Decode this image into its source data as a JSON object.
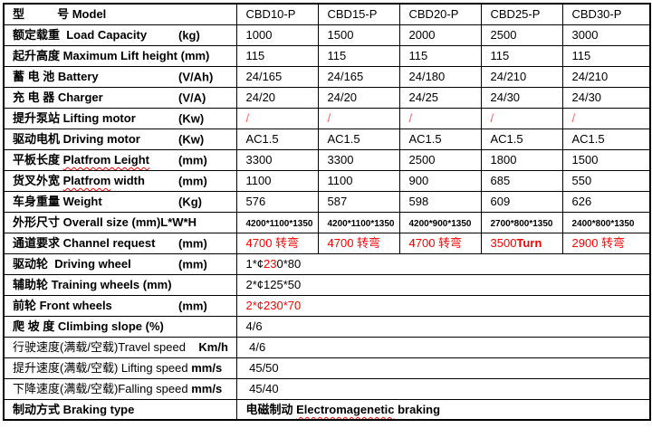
{
  "colors": {
    "red": "#ff0000",
    "soft_red": "#ff5f5f",
    "border": "#000000",
    "text": "#000000"
  },
  "table": {
    "rows": [
      {
        "id": "model",
        "label": [
          {
            "t": "型          号 Model",
            "b": 1
          }
        ],
        "unit": "",
        "cells": [
          [
            {
              "t": "CBD10-P"
            }
          ],
          [
            {
              "t": "CBD15-P"
            }
          ],
          [
            {
              "t": "CBD20-P"
            }
          ],
          [
            {
              "t": "CBD25-P"
            }
          ],
          [
            {
              "t": "CBD30-P"
            }
          ]
        ]
      },
      {
        "id": "load-capacity",
        "label": [
          {
            "t": "额定载重  Load Capacity",
            "b": 1
          }
        ],
        "unit": "(kg)",
        "cells": [
          [
            {
              "t": "1000"
            }
          ],
          [
            {
              "t": "1500"
            }
          ],
          [
            {
              "t": "2000"
            }
          ],
          [
            {
              "t": "2500"
            }
          ],
          [
            {
              "t": "3000"
            }
          ]
        ]
      },
      {
        "id": "lift-height",
        "label": [
          {
            "t": "起升高度 Maximum Lift height (mm)",
            "b": 1
          }
        ],
        "unit": "",
        "cells": [
          [
            {
              "t": "115"
            }
          ],
          [
            {
              "t": "115"
            }
          ],
          [
            {
              "t": "115"
            }
          ],
          [
            {
              "t": "115"
            }
          ],
          [
            {
              "t": "115"
            }
          ]
        ]
      },
      {
        "id": "battery",
        "label": [
          {
            "t": "蓄 电 池 Battery",
            "b": 1
          }
        ],
        "unit": "(V/Ah)",
        "cells": [
          [
            {
              "t": "24/165"
            }
          ],
          [
            {
              "t": "24/165"
            }
          ],
          [
            {
              "t": "24/180"
            }
          ],
          [
            {
              "t": "24/210"
            }
          ],
          [
            {
              "t": "24/210"
            }
          ]
        ]
      },
      {
        "id": "charger",
        "label": [
          {
            "t": "充 电 器 Charger",
            "b": 1
          }
        ],
        "unit": "(V/A)",
        "cells": [
          [
            {
              "t": "24/20"
            }
          ],
          [
            {
              "t": "24/20"
            }
          ],
          [
            {
              "t": "24/25"
            }
          ],
          [
            {
              "t": "24/30"
            }
          ],
          [
            {
              "t": "24/30"
            }
          ]
        ]
      },
      {
        "id": "lifting-motor",
        "label": [
          {
            "t": "提升泵站 Lifting motor",
            "b": 1
          }
        ],
        "unit": "(Kw)",
        "cells": [
          [
            {
              "t": "/",
              "softred": 1
            }
          ],
          [
            {
              "t": "/",
              "softred": 1
            }
          ],
          [
            {
              "t": "/",
              "softred": 1
            }
          ],
          [
            {
              "t": "/",
              "softred": 1
            }
          ],
          [
            {
              "t": "/",
              "softred": 1
            }
          ]
        ]
      },
      {
        "id": "driving-motor",
        "label": [
          {
            "t": "驱动电机 Driving motor",
            "b": 1
          }
        ],
        "unit": "(Kw)",
        "cells": [
          [
            {
              "t": "AC1.5"
            }
          ],
          [
            {
              "t": "AC1.5"
            }
          ],
          [
            {
              "t": "AC1.5"
            }
          ],
          [
            {
              "t": "AC1.5"
            }
          ],
          [
            {
              "t": "AC1.5"
            }
          ]
        ]
      },
      {
        "id": "platform-length",
        "label": [
          {
            "t": "平板长度 ",
            "b": 1
          },
          {
            "t": "Platfrom Leight",
            "b": 1,
            "wavy": 1
          }
        ],
        "unit": "(mm)",
        "cells": [
          [
            {
              "t": "3300"
            }
          ],
          [
            {
              "t": "3300"
            }
          ],
          [
            {
              "t": "2500"
            }
          ],
          [
            {
              "t": "1800"
            }
          ],
          [
            {
              "t": "1500"
            }
          ]
        ]
      },
      {
        "id": "platform-width",
        "label": [
          {
            "t": "货叉外宽 ",
            "b": 1
          },
          {
            "t": "Platfrom",
            "b": 1,
            "wavy": 1
          },
          {
            "t": " width",
            "b": 1
          }
        ],
        "unit": "(mm)",
        "cells": [
          [
            {
              "t": "1100"
            }
          ],
          [
            {
              "t": "1100"
            }
          ],
          [
            {
              "t": "900"
            }
          ],
          [
            {
              "t": "685"
            }
          ],
          [
            {
              "t": "550"
            }
          ]
        ]
      },
      {
        "id": "weight",
        "label": [
          {
            "t": "车身重量 Weight",
            "b": 1
          }
        ],
        "unit": "(Kg)",
        "cells": [
          [
            {
              "t": "576"
            }
          ],
          [
            {
              "t": "587"
            }
          ],
          [
            {
              "t": "598"
            }
          ],
          [
            {
              "t": "609"
            }
          ],
          [
            {
              "t": "626"
            }
          ]
        ]
      },
      {
        "id": "overall-size",
        "label": [
          {
            "t": "外形尺寸 Overall size (mm)L*W*H",
            "b": 1
          }
        ],
        "unit": "",
        "cells": [
          [
            {
              "t": "4200*1100*1350",
              "small": 1
            }
          ],
          [
            {
              "t": "4200*1100*1350",
              "small": 1
            }
          ],
          [
            {
              "t": "4200*900*1350",
              "small": 1
            }
          ],
          [
            {
              "t": "2700*800*1350",
              "small": 1
            }
          ],
          [
            {
              "t": "2400*800*1350",
              "small": 1
            }
          ]
        ]
      },
      {
        "id": "channel-request",
        "label": [
          {
            "t": "通道要求 Channel request",
            "b": 1
          }
        ],
        "unit": "(mm)",
        "cells": [
          [
            {
              "t": "4700 转弯",
              "red": 1
            }
          ],
          [
            {
              "t": "4700 转弯",
              "red": 1
            }
          ],
          [
            {
              "t": "4700 转弯",
              "red": 1
            }
          ],
          [
            {
              "t": "3500",
              "red": 1
            },
            {
              "t": "Turn",
              "red": 1,
              "b": 1
            }
          ],
          [
            {
              "t": "2900 转弯",
              "red": 1
            }
          ]
        ]
      },
      {
        "id": "driving-wheel",
        "label": [
          {
            "t": "驱动轮  Driving wheel",
            "b": 1
          }
        ],
        "unit": "(mm)",
        "span": true,
        "cells": [
          [
            {
              "t": "1*¢"
            },
            {
              "t": "23",
              "red": 1
            },
            {
              "t": "0*80"
            }
          ]
        ]
      },
      {
        "id": "training-wheels",
        "label": [
          {
            "t": "辅助轮 Training wheels (mm)",
            "b": 1
          }
        ],
        "unit": "",
        "span": true,
        "cells": [
          [
            {
              "t": "2*¢125*50"
            }
          ]
        ]
      },
      {
        "id": "front-wheels",
        "label": [
          {
            "t": "前轮 Front wheels",
            "b": 1
          }
        ],
        "unit": "(mm)",
        "span": true,
        "cells": [
          [
            {
              "t": "2*¢230*70",
              "red": 1
            }
          ]
        ]
      },
      {
        "id": "climbing-slope",
        "label": [
          {
            "t": "爬 坡 度 Climbing slope (%)",
            "b": 1
          }
        ],
        "unit": "",
        "span": true,
        "cells": [
          [
            {
              "t": "4/6"
            }
          ]
        ]
      },
      {
        "id": "travel-speed",
        "label": [
          {
            "t": "行驶速度(满载/空载)Travel speed    "
          },
          {
            "t": "Km/h",
            "b": 1
          }
        ],
        "unit": "",
        "span": true,
        "cells": [
          [
            {
              "t": " 4/6"
            }
          ]
        ]
      },
      {
        "id": "lifting-speed",
        "label": [
          {
            "t": "提升速度(满载/空载) Lifting speed "
          },
          {
            "t": "mm/s",
            "b": 1
          }
        ],
        "unit": "",
        "span": true,
        "cells": [
          [
            {
              "t": " 45/50"
            }
          ]
        ]
      },
      {
        "id": "falling-speed",
        "label": [
          {
            "t": "下降速度(满载/空载)Falling speed "
          },
          {
            "t": "mm/s",
            "b": 1
          }
        ],
        "unit": "",
        "span": true,
        "cells": [
          [
            {
              "t": " 45/40"
            }
          ]
        ]
      },
      {
        "id": "braking-type",
        "label": [
          {
            "t": "制动方式 Braking type",
            "b": 1
          }
        ],
        "unit": "",
        "span": true,
        "cells": [
          [
            {
              "t": "电磁制动 ",
              "b": 1
            },
            {
              "t": "Electromagenetic",
              "b": 1,
              "wavy": 1
            },
            {
              "t": " braking",
              "b": 1
            }
          ]
        ]
      }
    ]
  }
}
